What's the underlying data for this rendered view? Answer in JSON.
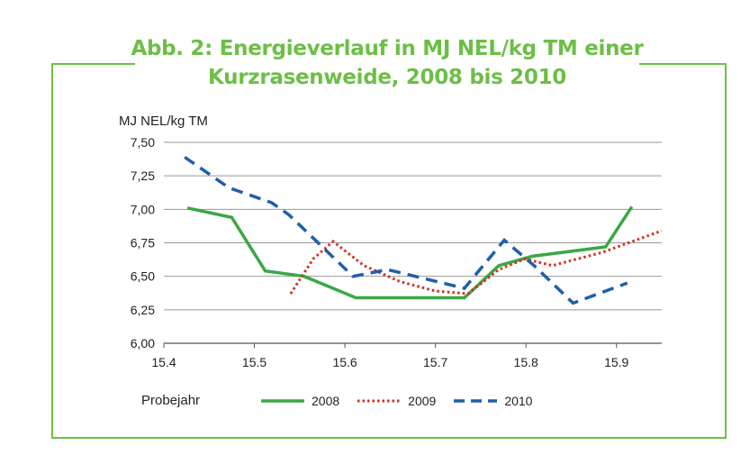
{
  "figure": {
    "title_line1": "Abb. 2:  Energieverlauf in MJ NEL/kg TM einer",
    "title_line2": "Kurzrasenweide, 2008 bis 2010",
    "ylabel": "MJ NEL/kg TM",
    "xlabel": "Probejahr"
  },
  "colors": {
    "accent": "#6cbf45",
    "2008": "#3aa845",
    "2009": "#d32f1f",
    "2010": "#1f5fa8",
    "grid": "#9a9a9a"
  },
  "chart_data": {
    "type": "line",
    "ylabel": "MJ NEL/kg TM",
    "xlabel": "Probejahr",
    "xlim": [
      15.4,
      15.95
    ],
    "ylim": [
      6.0,
      7.5
    ],
    "x_ticks": [
      "15.4",
      "15.5",
      "15.6",
      "15.7",
      "15.8",
      "15.9"
    ],
    "y_ticks": [
      "6,00",
      "6,25",
      "6,50",
      "6,75",
      "7,00",
      "7,25",
      "7,50"
    ],
    "grid": true,
    "legend_position": "bottom",
    "series": [
      {
        "name": "2008",
        "style": "solid",
        "x": [
          15.426,
          15.475,
          15.512,
          15.555,
          15.612,
          15.732,
          15.77,
          15.807,
          15.888,
          15.917
        ],
        "y": [
          7.01,
          6.94,
          6.54,
          6.5,
          6.34,
          6.34,
          6.58,
          6.65,
          6.72,
          7.02
        ]
      },
      {
        "name": "2009",
        "style": "dotted",
        "x": [
          15.54,
          15.565,
          15.587,
          15.621,
          15.661,
          15.7,
          15.736,
          15.77,
          15.799,
          15.829,
          15.885,
          15.95
        ],
        "y": [
          6.37,
          6.63,
          6.76,
          6.58,
          6.46,
          6.39,
          6.37,
          6.55,
          6.63,
          6.58,
          6.68,
          6.84
        ]
      },
      {
        "name": "2010",
        "style": "dashed",
        "x": [
          15.423,
          15.472,
          15.519,
          15.538,
          15.609,
          15.647,
          15.732,
          15.776,
          15.809,
          15.852,
          15.912
        ],
        "y": [
          7.39,
          7.16,
          7.05,
          6.96,
          6.5,
          6.55,
          6.41,
          6.77,
          6.58,
          6.3,
          6.45
        ]
      }
    ]
  }
}
